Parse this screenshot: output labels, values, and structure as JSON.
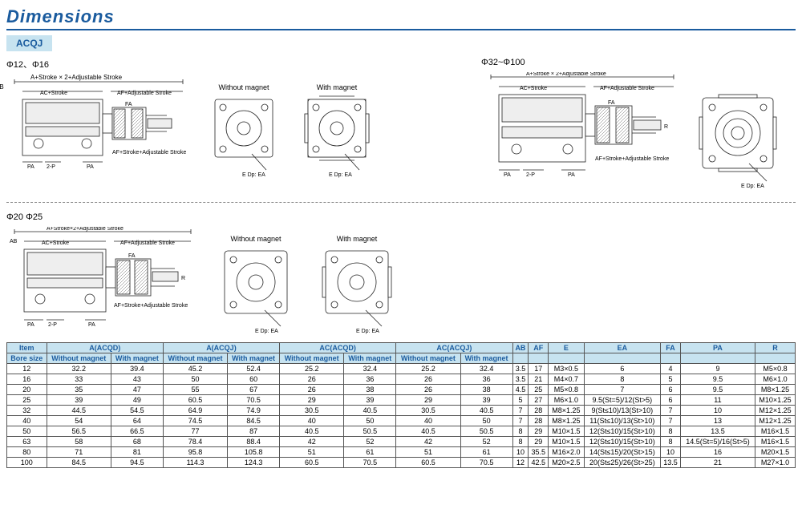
{
  "header": {
    "title": "Dimensions"
  },
  "model": "ACQJ",
  "bore_labels": {
    "r1": "Φ12、Φ16",
    "r2": "Φ20  Φ25",
    "r3": "Φ32~Φ100"
  },
  "annotations": {
    "formula_top": "A+Stroke × 2+Adjustable Stroke",
    "formula_top2": "A+Stroke×2+Adjustable Stroke",
    "ac_stroke": "AC+Stroke",
    "af_adj": "AF+Adjustable Stroke",
    "af_stroke_adj": "AF+Stroke+Adjustable Stroke",
    "ab": "AB",
    "fa": "FA",
    "pa": "PA",
    "2p": "2-P",
    "without_magnet": "Without magnet",
    "with_magnet": "With magnet",
    "edp": "E Dp: EA",
    "r": "R"
  },
  "table": {
    "header1": [
      "Item",
      "A(ACQD)",
      "A(ACQJ)",
      "AC(ACQD)",
      "AC(ACQJ)",
      "AB",
      "AF",
      "E",
      "EA",
      "FA",
      "PA",
      "R"
    ],
    "header2": [
      "Bore size",
      "Without magnet",
      "With magnet",
      "Without magnet",
      "With magnet",
      "Without magnet",
      "With magnet",
      "Without magnet",
      "With magnet",
      "",
      "",
      "",
      "",
      "",
      "",
      ""
    ],
    "rows": [
      [
        "12",
        "32.2",
        "39.4",
        "45.2",
        "52.4",
        "25.2",
        "32.4",
        "25.2",
        "32.4",
        "3.5",
        "17",
        "M3×0.5",
        "6",
        "4",
        "9",
        "M5×0.8"
      ],
      [
        "16",
        "33",
        "43",
        "50",
        "60",
        "26",
        "36",
        "26",
        "36",
        "3.5",
        "21",
        "M4×0.7",
        "8",
        "5",
        "9.5",
        "M6×1.0"
      ],
      [
        "20",
        "35",
        "47",
        "55",
        "67",
        "26",
        "38",
        "26",
        "38",
        "4.5",
        "25",
        "M5×0.8",
        "7",
        "6",
        "9.5",
        "M8×1.25"
      ],
      [
        "25",
        "39",
        "49",
        "60.5",
        "70.5",
        "29",
        "39",
        "29",
        "39",
        "5",
        "27",
        "M6×1.0",
        "9.5(St=5)/12(St>5)",
        "6",
        "11",
        "M10×1.25"
      ],
      [
        "32",
        "44.5",
        "54.5",
        "64.9",
        "74.9",
        "30.5",
        "40.5",
        "30.5",
        "40.5",
        "7",
        "28",
        "M8×1.25",
        "9(St≤10)/13(St>10)",
        "7",
        "10",
        "M12×1.25"
      ],
      [
        "40",
        "54",
        "64",
        "74.5",
        "84.5",
        "40",
        "50",
        "40",
        "50",
        "7",
        "28",
        "M8×1.25",
        "11(St≤10)/13(St>10)",
        "7",
        "13",
        "M12×1.25"
      ],
      [
        "50",
        "56.5",
        "66.5",
        "77",
        "87",
        "40.5",
        "50.5",
        "40.5",
        "50.5",
        "8",
        "29",
        "M10×1.5",
        "12(St≤10)/15(St>10)",
        "8",
        "13.5",
        "M16×1.5"
      ],
      [
        "63",
        "58",
        "68",
        "78.4",
        "88.4",
        "42",
        "52",
        "42",
        "52",
        "8",
        "29",
        "M10×1.5",
        "12(St≤10)/15(St>10)",
        "8",
        "14.5(St=5)/16(St>5)",
        "M16×1.5"
      ],
      [
        "80",
        "71",
        "81",
        "95.8",
        "105.8",
        "51",
        "61",
        "51",
        "61",
        "10",
        "35.5",
        "M16×2.0",
        "14(St≤15)/20(St>15)",
        "10",
        "16",
        "M20×1.5"
      ],
      [
        "100",
        "84.5",
        "94.5",
        "114.3",
        "124.3",
        "60.5",
        "70.5",
        "60.5",
        "70.5",
        "12",
        "42.5",
        "M20×2.5",
        "20(St≤25)/26(St>25)",
        "13.5",
        "21",
        "M27×1.0"
      ]
    ]
  },
  "style": {
    "accent": "#1a5b9e",
    "header_bg": "#c7e3f0",
    "font_main": 10
  }
}
